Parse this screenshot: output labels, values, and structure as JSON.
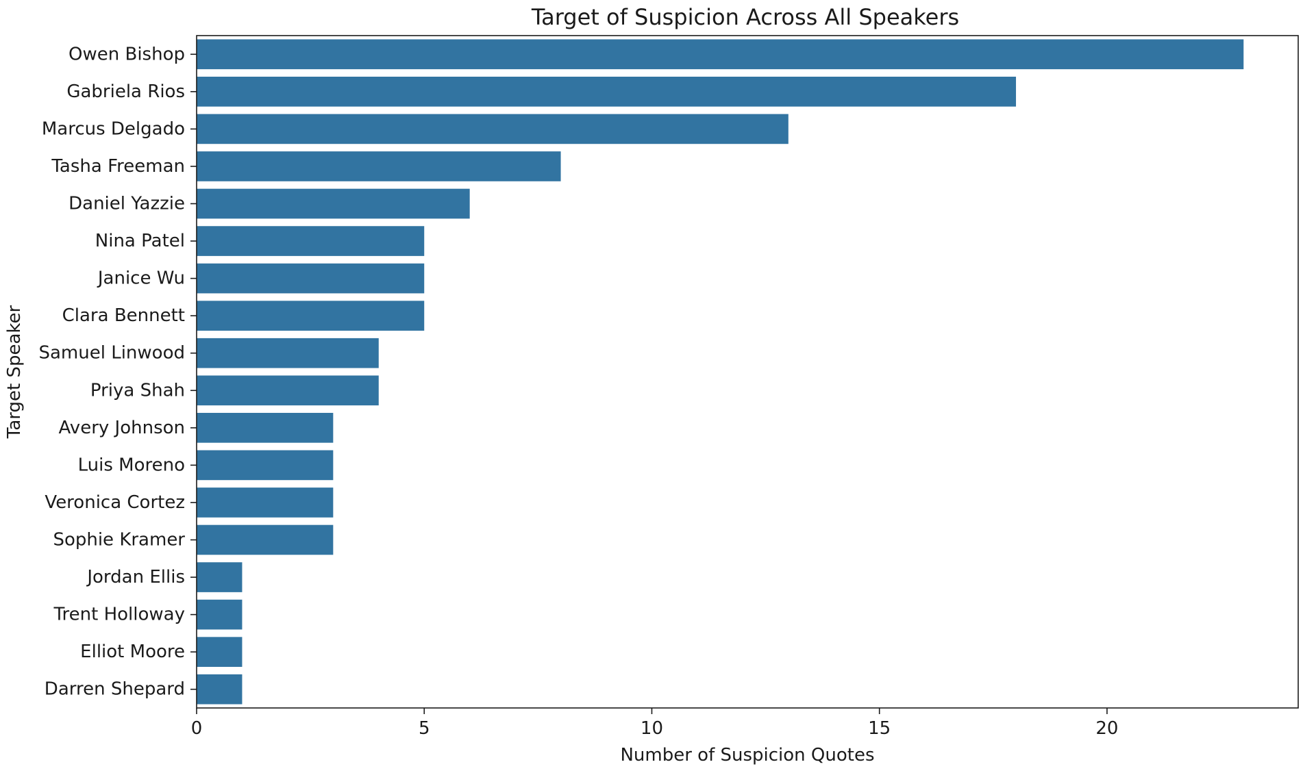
{
  "chart_data": {
    "type": "bar",
    "orientation": "horizontal",
    "title": "Target of Suspicion Across All Speakers",
    "xlabel": "Number of Suspicion Quotes",
    "ylabel": "Target Speaker",
    "xlim": [
      0,
      24.2
    ],
    "xticks": [
      0,
      5,
      10,
      15,
      20
    ],
    "xtick_labels": [
      "0",
      "5",
      "10",
      "15",
      "20"
    ],
    "grid": false,
    "legend": "none",
    "bar_color": "#3274a1",
    "categories": [
      "Owen Bishop",
      "Gabriela Rios",
      "Marcus Delgado",
      "Tasha Freeman",
      "Daniel Yazzie",
      "Nina Patel",
      "Janice Wu",
      "Clara Bennett",
      "Samuel Linwood",
      "Priya Shah",
      "Avery Johnson",
      "Luis Moreno",
      "Veronica Cortez",
      "Sophie Kramer",
      "Jordan Ellis",
      "Trent Holloway",
      "Elliot Moore",
      "Darren Shepard"
    ],
    "values": [
      23,
      18,
      13,
      8,
      6,
      5,
      5,
      5,
      4,
      4,
      3,
      3,
      3,
      3,
      1,
      1,
      1,
      1
    ]
  }
}
